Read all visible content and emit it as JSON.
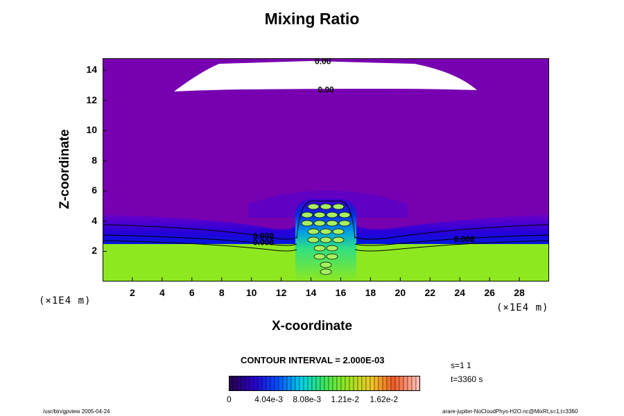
{
  "chart_data": {
    "type": "heatmap",
    "title": "Mixing Ratio",
    "xlabel": "X-coordinate",
    "ylabel": "Z-coordinate",
    "x_unit": "(×1E4 m)",
    "y_unit": "(×1E4 m)",
    "x_ticks": [
      "2",
      "4",
      "6",
      "8",
      "10",
      "12",
      "14",
      "16",
      "18",
      "20",
      "22",
      "24",
      "26",
      "28"
    ],
    "y_ticks": [
      "2",
      "4",
      "6",
      "8",
      "10",
      "12",
      "14"
    ],
    "xlim": [
      0,
      30
    ],
    "ylim": [
      0,
      14.8
    ],
    "contour_labels": [
      {
        "text": "0.00",
        "x": 14.8,
        "z": 14.6
      },
      {
        "text": "0.00",
        "x": 15.0,
        "z": 12.7
      },
      {
        "text": "0.008",
        "x": 10.8,
        "z": 3.0
      },
      {
        "text": "0.008",
        "x": 10.8,
        "z": 2.6
      },
      {
        "text": "0.008",
        "x": 24.3,
        "z": 2.8
      }
    ],
    "contour_interval": "CONTOUR INTERVAL = 2.000E-03",
    "colorbar_ticks": [
      "0",
      "4.04e-3",
      "8.08e-3",
      "1.21e-2",
      "1.62e-2"
    ],
    "colorbar_range": [
      0,
      0.0202
    ],
    "colors": {
      "background_field": "#7700b0",
      "lower_layer": "#8ee820",
      "cloud_gap": "#ffffff"
    }
  },
  "info": {
    "s": "s=1 1",
    "t": "t=3360 s"
  },
  "footer": {
    "left": "/usr/bin/gpview 2005-04-24",
    "right": "arare-jupiter-NoCloudPhys-H2O.nc@MixRt,s=1,t=3360"
  }
}
